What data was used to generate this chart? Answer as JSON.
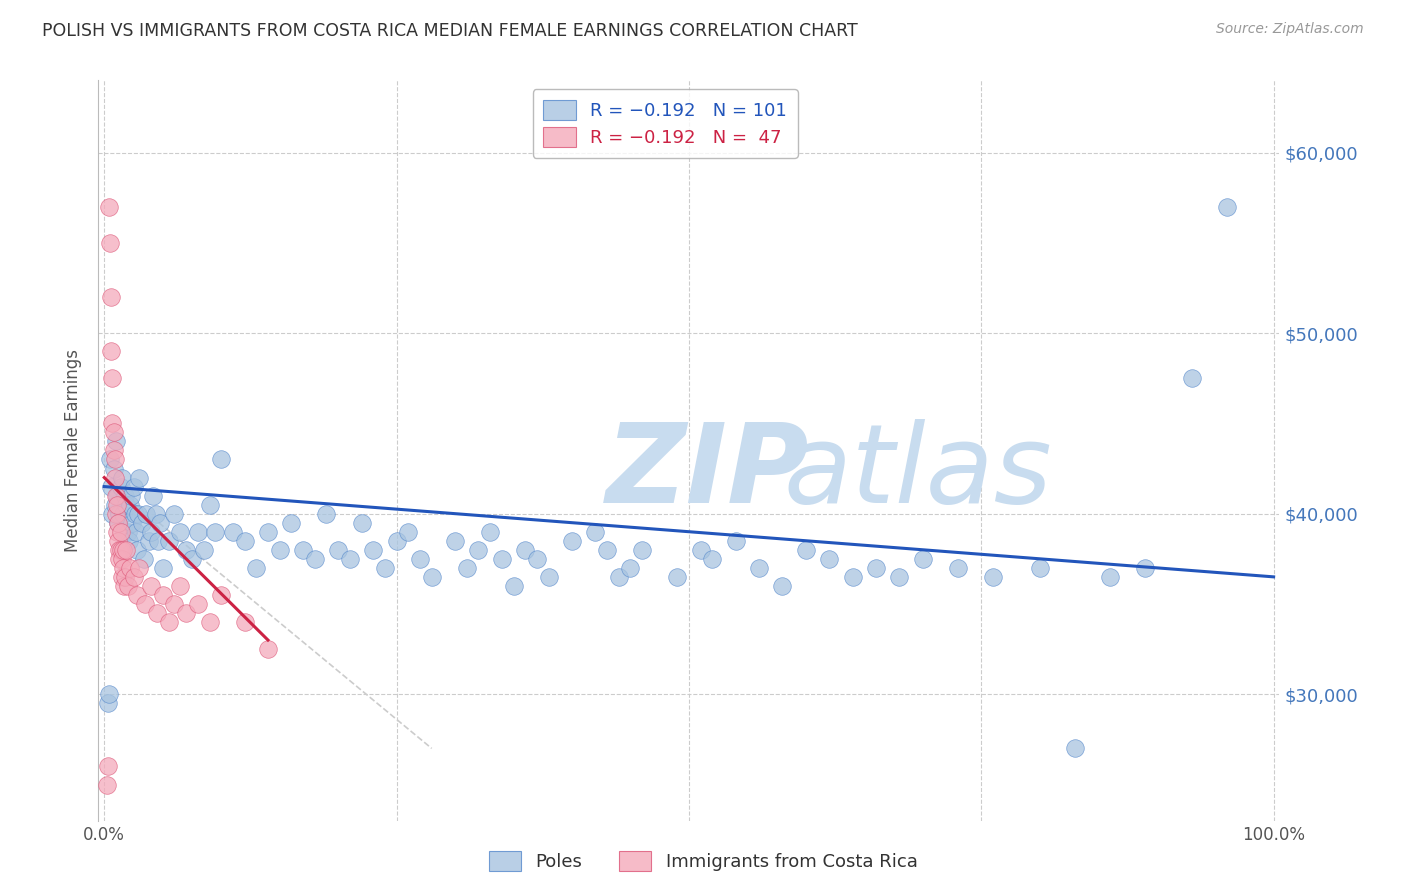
{
  "title": "POLISH VS IMMIGRANTS FROM COSTA RICA MEDIAN FEMALE EARNINGS CORRELATION CHART",
  "source": "Source: ZipAtlas.com",
  "ylabel": "Median Female Earnings",
  "yticks": [
    30000,
    40000,
    50000,
    60000
  ],
  "ytick_labels": [
    "$30,000",
    "$40,000",
    "$50,000",
    "$60,000"
  ],
  "ymin": 23000,
  "ymax": 64000,
  "xmin": -0.005,
  "xmax": 1.005,
  "blue_color": "#A8C4E0",
  "blue_edge": "#5588CC",
  "pink_color": "#F4AABB",
  "pink_edge": "#DD5577",
  "trendline_blue": "#2255BB",
  "trendline_pink": "#CC2244",
  "trendline_gray": "#CCCCCC",
  "background_color": "#FFFFFF",
  "grid_color": "#CCCCCC",
  "poles_scatter_x": [
    0.003,
    0.004,
    0.005,
    0.006,
    0.007,
    0.008,
    0.009,
    0.01,
    0.011,
    0.012,
    0.013,
    0.014,
    0.015,
    0.016,
    0.017,
    0.018,
    0.019,
    0.02,
    0.021,
    0.022,
    0.023,
    0.024,
    0.025,
    0.026,
    0.027,
    0.028,
    0.029,
    0.03,
    0.032,
    0.034,
    0.036,
    0.038,
    0.04,
    0.042,
    0.044,
    0.046,
    0.048,
    0.05,
    0.055,
    0.06,
    0.065,
    0.07,
    0.075,
    0.08,
    0.085,
    0.09,
    0.095,
    0.1,
    0.11,
    0.12,
    0.13,
    0.14,
    0.15,
    0.16,
    0.17,
    0.18,
    0.19,
    0.2,
    0.21,
    0.22,
    0.23,
    0.24,
    0.25,
    0.26,
    0.27,
    0.28,
    0.3,
    0.31,
    0.32,
    0.33,
    0.34,
    0.35,
    0.36,
    0.37,
    0.38,
    0.4,
    0.42,
    0.43,
    0.44,
    0.45,
    0.46,
    0.49,
    0.51,
    0.52,
    0.54,
    0.56,
    0.58,
    0.6,
    0.62,
    0.64,
    0.66,
    0.68,
    0.7,
    0.73,
    0.76,
    0.8,
    0.83,
    0.86,
    0.89,
    0.93,
    0.96
  ],
  "poles_scatter_y": [
    29500,
    30000,
    43000,
    41500,
    40000,
    42500,
    40500,
    44000,
    41000,
    39500,
    40000,
    41500,
    42000,
    40000,
    39000,
    41000,
    40500,
    39000,
    38500,
    40500,
    41000,
    39500,
    41500,
    40000,
    39000,
    38000,
    40000,
    42000,
    39500,
    37500,
    40000,
    38500,
    39000,
    41000,
    40000,
    38500,
    39500,
    37000,
    38500,
    40000,
    39000,
    38000,
    37500,
    39000,
    38000,
    40500,
    39000,
    43000,
    39000,
    38500,
    37000,
    39000,
    38000,
    39500,
    38000,
    37500,
    40000,
    38000,
    37500,
    39500,
    38000,
    37000,
    38500,
    39000,
    37500,
    36500,
    38500,
    37000,
    38000,
    39000,
    37500,
    36000,
    38000,
    37500,
    36500,
    38500,
    39000,
    38000,
    36500,
    37000,
    38000,
    36500,
    38000,
    37500,
    38500,
    37000,
    36000,
    38000,
    37500,
    36500,
    37000,
    36500,
    37500,
    37000,
    36500,
    37000,
    27000,
    36500,
    37000,
    47500,
    57000
  ],
  "costa_rica_scatter_x": [
    0.002,
    0.003,
    0.004,
    0.005,
    0.006,
    0.006,
    0.007,
    0.007,
    0.008,
    0.008,
    0.009,
    0.009,
    0.01,
    0.01,
    0.011,
    0.011,
    0.012,
    0.012,
    0.013,
    0.013,
    0.014,
    0.014,
    0.015,
    0.015,
    0.016,
    0.016,
    0.017,
    0.018,
    0.019,
    0.02,
    0.022,
    0.025,
    0.028,
    0.03,
    0.035,
    0.04,
    0.045,
    0.05,
    0.055,
    0.06,
    0.065,
    0.07,
    0.08,
    0.09,
    0.1,
    0.12,
    0.14
  ],
  "costa_rica_scatter_y": [
    25000,
    26000,
    57000,
    55000,
    52000,
    49000,
    47500,
    45000,
    43500,
    44500,
    42000,
    43000,
    41000,
    40000,
    39000,
    40500,
    38500,
    39500,
    38000,
    37500,
    39000,
    38000,
    37500,
    36500,
    38000,
    37000,
    36000,
    36500,
    38000,
    36000,
    37000,
    36500,
    35500,
    37000,
    35000,
    36000,
    34500,
    35500,
    34000,
    35000,
    36000,
    34500,
    35000,
    34000,
    35500,
    34000,
    32500
  ],
  "blue_trend_x0": 0.0,
  "blue_trend_y0": 41500,
  "blue_trend_x1": 1.0,
  "blue_trend_y1": 36500,
  "pink_trend_x0": 0.0,
  "pink_trend_y0": 42000,
  "pink_trend_x1": 0.14,
  "pink_trend_y1": 33000,
  "gray_trend_x0": 0.0,
  "gray_trend_y0": 42000,
  "gray_trend_x1": 0.28,
  "gray_trend_y1": 27000
}
